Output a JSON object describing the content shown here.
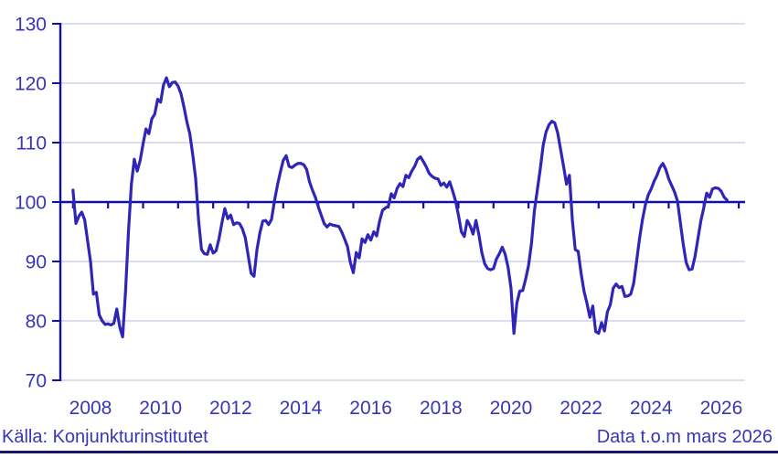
{
  "footer": {
    "source": "Källa: Konjunkturinstitutet",
    "note": "Data t.o.m mars 2026"
  },
  "colors": {
    "line": "#2f25b7",
    "axis": "#14109e",
    "grid": "#d8d8f0",
    "text": "#3a34b6",
    "rule": "#1c156e",
    "background": "#ffffff"
  },
  "chart_data": {
    "type": "line",
    "title": "",
    "xlabel": "",
    "ylabel": "",
    "ylim": [
      70,
      130
    ],
    "y_ticks": [
      70,
      80,
      90,
      100,
      110,
      120,
      130
    ],
    "x_tick_labels": [
      "2008",
      "2010",
      "2012",
      "2014",
      "2016",
      "2018",
      "2020",
      "2022",
      "2024",
      "2026"
    ],
    "reference_line": 100,
    "grid": "horizontal",
    "legend": "none",
    "series": [
      {
        "name": "indicator-index-mean-100",
        "frequency": "monthly",
        "start": "2007-07",
        "end": "2026-03",
        "values": [
          102.0,
          96.4,
          97.6,
          98.3,
          97.0,
          93.5,
          90.0,
          84.5,
          84.8,
          81.0,
          80.0,
          79.4,
          79.5,
          79.3,
          79.6,
          82.0,
          79.0,
          77.3,
          85.0,
          95.0,
          103.0,
          107.2,
          105.2,
          107.0,
          109.8,
          112.3,
          111.5,
          114.0,
          114.8,
          117.3,
          116.8,
          119.7,
          120.9,
          119.4,
          120.1,
          120.2,
          119.5,
          118.2,
          116.0,
          113.5,
          111.5,
          108.0,
          104.0,
          97.0,
          92.0,
          91.3,
          91.2,
          92.8,
          91.4,
          91.8,
          93.8,
          96.5,
          98.9,
          97.2,
          97.8,
          96.2,
          96.5,
          96.4,
          95.5,
          94.0,
          91.0,
          88.0,
          87.5,
          92.0,
          94.8,
          96.8,
          96.9,
          96.2,
          97.1,
          100.2,
          102.8,
          105.0,
          107.0,
          107.8,
          106.0,
          105.8,
          106.2,
          106.5,
          106.5,
          106.3,
          105.5,
          103.4,
          102.0,
          100.8,
          99.2,
          97.8,
          96.4,
          95.8,
          96.3,
          96.1,
          96.0,
          95.9,
          95.0,
          93.8,
          92.5,
          89.8,
          88.1,
          91.5,
          90.6,
          93.8,
          93.2,
          94.5,
          93.6,
          95.0,
          94.3,
          96.8,
          98.6,
          99.0,
          99.3,
          101.4,
          100.7,
          102.3,
          103.1,
          102.6,
          104.5,
          104.1,
          105.2,
          106.0,
          107.2,
          107.6,
          106.8,
          105.9,
          104.8,
          104.3,
          104.0,
          103.9,
          102.8,
          103.2,
          102.5,
          103.4,
          101.9,
          100.2,
          97.8,
          95.0,
          94.2,
          96.9,
          96.0,
          94.6,
          96.9,
          94.5,
          91.5,
          89.6,
          88.8,
          88.6,
          88.8,
          90.4,
          91.3,
          92.4,
          91.2,
          89.0,
          85.5,
          77.9,
          83.0,
          85.0,
          85.1,
          87.0,
          89.3,
          93.0,
          98.5,
          102.0,
          105.5,
          109.5,
          111.8,
          113.0,
          113.6,
          113.3,
          111.6,
          108.8,
          106.0,
          103.0,
          104.5,
          97.0,
          92.0,
          91.7,
          88.0,
          85.0,
          83.0,
          80.6,
          82.5,
          78.2,
          77.9,
          79.7,
          78.3,
          81.5,
          82.7,
          85.5,
          86.2,
          85.6,
          85.8,
          84.1,
          84.2,
          84.5,
          86.3,
          90.0,
          93.8,
          97.0,
          99.5,
          101.2,
          102.2,
          103.5,
          104.5,
          105.8,
          106.5,
          105.5,
          103.9,
          102.8,
          101.7,
          100.2,
          96.5,
          92.8,
          89.8,
          88.6,
          88.7,
          90.8,
          93.8,
          96.8,
          99.0,
          101.5,
          100.8,
          102.2,
          102.4,
          102.3,
          101.8,
          100.8,
          100.3
        ]
      }
    ]
  }
}
